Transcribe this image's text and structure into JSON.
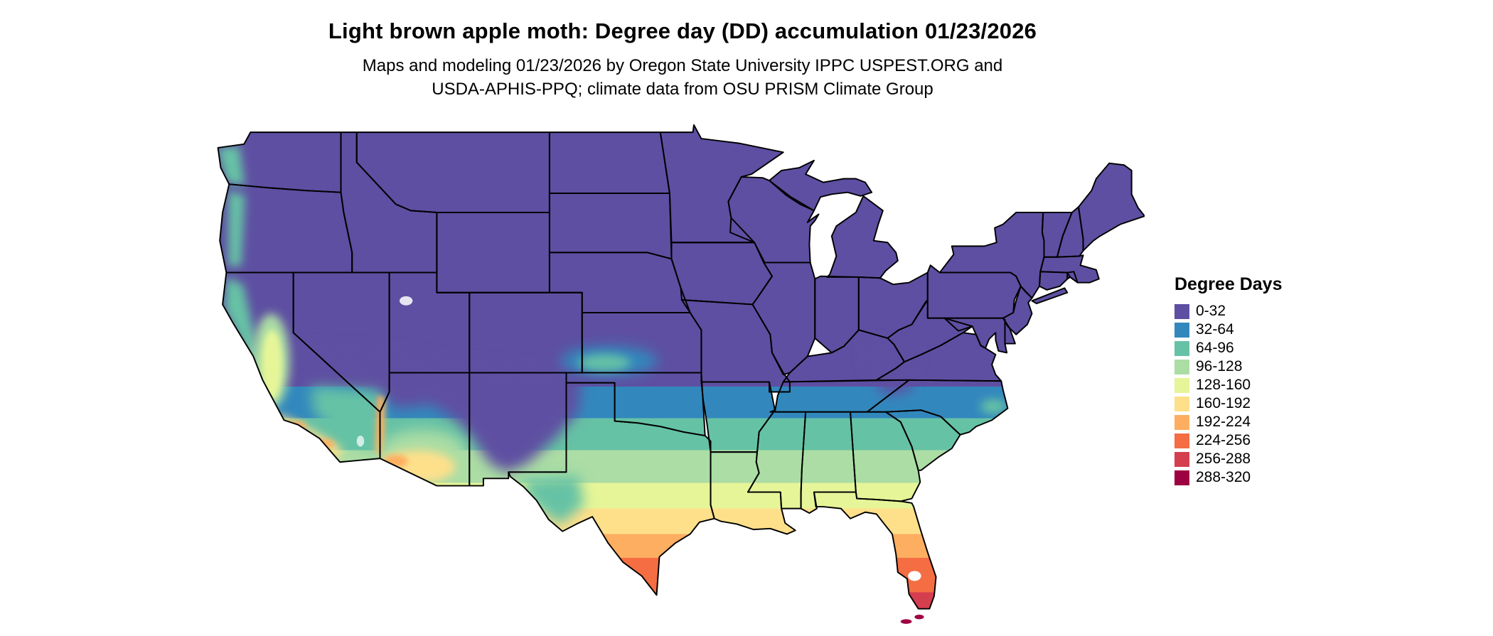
{
  "header": {
    "title": "Light brown apple moth: Degree day (DD) accumulation 01/23/2026",
    "subtitle_line1": "Maps and modeling 01/23/2026 by Oregon State University IPPC USPEST.ORG and",
    "subtitle_line2": "USDA-APHIS-PPQ; climate data from OSU PRISM Climate Group"
  },
  "legend": {
    "title": "Degree Days",
    "items": [
      {
        "label": "0-32",
        "color": "#5e4fa2"
      },
      {
        "label": "32-64",
        "color": "#3288bd"
      },
      {
        "label": "64-96",
        "color": "#66c2a5"
      },
      {
        "label": "96-128",
        "color": "#abdda4"
      },
      {
        "label": "128-160",
        "color": "#e6f598"
      },
      {
        "label": "160-192",
        "color": "#fee08b"
      },
      {
        "label": "192-224",
        "color": "#fdae61"
      },
      {
        "label": "224-256",
        "color": "#f46d43"
      },
      {
        "label": "256-288",
        "color": "#d53e4f"
      },
      {
        "label": "288-320",
        "color": "#9e0142"
      }
    ]
  },
  "map": {
    "region": "Contiguous United States",
    "quantity": "Degree day (DD) accumulation",
    "species": "Light brown apple moth",
    "date": "01/23/2026",
    "border_color": "#000000",
    "background_color": "#ffffff"
  }
}
